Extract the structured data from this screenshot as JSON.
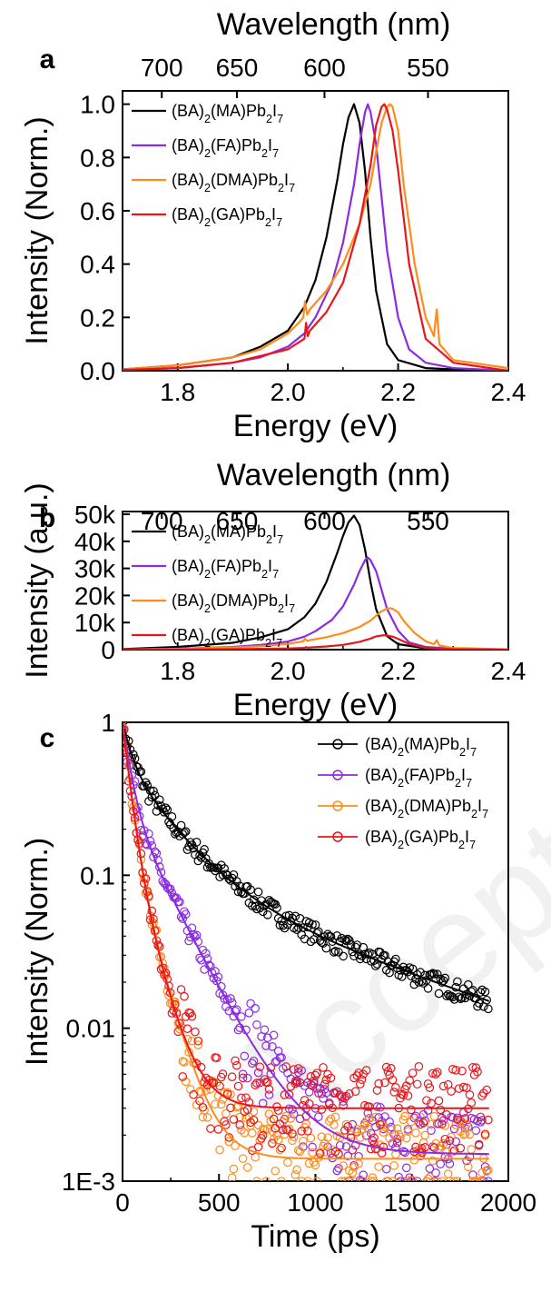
{
  "watermark": "Accepted Manuscript",
  "colors": {
    "MA": "#000000",
    "FA": "#8B2BE2",
    "DMA": "#FF8C1A",
    "GA": "#E8161B"
  },
  "chart_data": [
    {
      "panel": "a",
      "type": "line",
      "top_axis_label": "Wavelength (nm)",
      "top_ticks": [
        700,
        650,
        600,
        550
      ],
      "xlabel": "Energy (eV)",
      "ylabel": "Intensity (Norm.)",
      "xlim": [
        1.7,
        2.4
      ],
      "ylim": [
        0,
        1.05
      ],
      "xticks": [
        1.8,
        2.0,
        2.2,
        2.4
      ],
      "xtick_labels": [
        "1.8",
        "2.0",
        "2.2",
        "2.4"
      ],
      "yticks": [
        0,
        0.2,
        0.4,
        0.6,
        0.8,
        1.0
      ],
      "ytick_labels": [
        "0.0",
        "0.2",
        "0.4",
        "0.6",
        "0.8",
        "1.0"
      ],
      "legend": "top-left",
      "series": [
        {
          "name": "(BA)2(MA)Pb2I7",
          "label_main": "(BA)",
          "sub1": "2",
          "mid": "(MA)Pb",
          "sub2": "2",
          "end": "I",
          "sub3": "7",
          "color_key": "MA",
          "x": [
            1.7,
            1.8,
            1.9,
            1.95,
            2.0,
            2.03,
            2.05,
            2.07,
            2.09,
            2.1,
            2.11,
            2.12,
            2.13,
            2.14,
            2.15,
            2.16,
            2.18,
            2.2,
            2.25,
            2.3,
            2.4
          ],
          "y": [
            0.005,
            0.02,
            0.05,
            0.09,
            0.15,
            0.24,
            0.34,
            0.5,
            0.72,
            0.85,
            0.95,
            1.0,
            0.93,
            0.75,
            0.5,
            0.3,
            0.1,
            0.04,
            0.01,
            0.005,
            0.0
          ]
        },
        {
          "name": "(BA)2(FA)Pb2I7",
          "label_main": "(BA)",
          "sub1": "2",
          "mid": "(FA)Pb",
          "sub2": "2",
          "end": "I",
          "sub3": "7",
          "color_key": "FA",
          "x": [
            1.7,
            1.8,
            1.9,
            1.95,
            2.0,
            2.03,
            2.05,
            2.08,
            2.1,
            2.12,
            2.13,
            2.14,
            2.145,
            2.15,
            2.16,
            2.17,
            2.18,
            2.2,
            2.22,
            2.25,
            2.3,
            2.4
          ],
          "y": [
            0.003,
            0.01,
            0.03,
            0.05,
            0.09,
            0.14,
            0.2,
            0.33,
            0.48,
            0.7,
            0.85,
            0.97,
            1.0,
            0.97,
            0.85,
            0.65,
            0.45,
            0.2,
            0.08,
            0.03,
            0.01,
            0.0
          ]
        },
        {
          "name": "(BA)2(DMA)Pb2I7",
          "label_main": "(BA)",
          "sub1": "2",
          "mid": "(DMA)Pb",
          "sub2": "2",
          "end": "I",
          "sub3": "7",
          "color_key": "DMA",
          "x": [
            1.7,
            1.8,
            1.9,
            1.95,
            2.0,
            2.02,
            2.028,
            2.031,
            2.035,
            2.04,
            2.07,
            2.1,
            2.13,
            2.15,
            2.16,
            2.17,
            2.18,
            2.185,
            2.19,
            2.2,
            2.21,
            2.23,
            2.25,
            2.265,
            2.27,
            2.275,
            2.3,
            2.4
          ],
          "y": [
            0.005,
            0.02,
            0.05,
            0.08,
            0.14,
            0.18,
            0.2,
            0.26,
            0.21,
            0.23,
            0.3,
            0.4,
            0.55,
            0.7,
            0.82,
            0.93,
            0.99,
            1.0,
            0.99,
            0.9,
            0.7,
            0.4,
            0.2,
            0.13,
            0.23,
            0.1,
            0.04,
            0.01
          ]
        },
        {
          "name": "(BA)2(GA)Pb2I7",
          "label_main": "(BA)",
          "sub1": "2",
          "mid": "(GA)Pb",
          "sub2": "2",
          "end": "I",
          "sub3": "7",
          "color_key": "GA",
          "x": [
            1.7,
            1.8,
            1.9,
            2.0,
            2.03,
            2.033,
            2.036,
            2.04,
            2.07,
            2.1,
            2.13,
            2.15,
            2.16,
            2.17,
            2.175,
            2.18,
            2.19,
            2.2,
            2.22,
            2.25,
            2.3,
            2.4
          ],
          "y": [
            0.003,
            0.01,
            0.03,
            0.08,
            0.12,
            0.18,
            0.13,
            0.15,
            0.22,
            0.33,
            0.55,
            0.77,
            0.92,
            0.99,
            1.0,
            0.98,
            0.9,
            0.75,
            0.4,
            0.12,
            0.03,
            0.0
          ]
        }
      ]
    },
    {
      "panel": "b",
      "type": "line",
      "top_axis_label": "Wavelength (nm)",
      "top_ticks": [
        700,
        650,
        600,
        550
      ],
      "xlabel": "Energy (eV)",
      "ylabel": "Intensity (a.u.)",
      "xlim": [
        1.7,
        2.4
      ],
      "ylim": [
        0,
        51000
      ],
      "xticks": [
        1.8,
        2.0,
        2.2,
        2.4
      ],
      "xtick_labels": [
        "1.8",
        "2.0",
        "2.2",
        "2.4"
      ],
      "yticks": [
        0,
        10000,
        20000,
        30000,
        40000,
        50000
      ],
      "ytick_labels": [
        "0",
        "10k",
        "20k",
        "30k",
        "40k",
        "50k"
      ],
      "legend": "top-left",
      "series": [
        {
          "name": "(BA)2(MA)Pb2I7",
          "label_main": "(BA)",
          "sub1": "2",
          "mid": "(MA)Pb",
          "sub2": "2",
          "end": "I",
          "sub3": "7",
          "color_key": "MA",
          "x": [
            1.7,
            1.8,
            1.9,
            1.95,
            2.0,
            2.03,
            2.05,
            2.07,
            2.09,
            2.1,
            2.11,
            2.12,
            2.13,
            2.14,
            2.15,
            2.16,
            2.18,
            2.2,
            2.25,
            2.3,
            2.4
          ],
          "y": [
            250,
            1000,
            2500,
            4500,
            7500,
            12000,
            17000,
            25000,
            36000,
            42000,
            47000,
            49500,
            46000,
            37000,
            25000,
            15000,
            5000,
            2000,
            500,
            200,
            0
          ]
        },
        {
          "name": "(BA)2(FA)Pb2I7",
          "label_main": "(BA)",
          "sub1": "2",
          "mid": "(FA)Pb",
          "sub2": "2",
          "end": "I",
          "sub3": "7",
          "color_key": "FA",
          "x": [
            1.7,
            1.8,
            1.9,
            1.95,
            2.0,
            2.03,
            2.05,
            2.08,
            2.1,
            2.12,
            2.13,
            2.14,
            2.145,
            2.15,
            2.16,
            2.17,
            2.18,
            2.2,
            2.22,
            2.25,
            2.3,
            2.4
          ],
          "y": [
            100,
            340,
            1000,
            1700,
            3000,
            4800,
            6800,
            11000,
            16000,
            24000,
            29000,
            33000,
            34000,
            33000,
            29000,
            22000,
            15000,
            7000,
            2700,
            1000,
            300,
            0
          ]
        },
        {
          "name": "(BA)2(DMA)Pb2I7",
          "label_main": "(BA)",
          "sub1": "2",
          "mid": "(DMA)Pb",
          "sub2": "2",
          "end": "I",
          "sub3": "7",
          "color_key": "DMA",
          "x": [
            1.7,
            1.8,
            1.9,
            1.95,
            2.0,
            2.02,
            2.028,
            2.031,
            2.035,
            2.04,
            2.07,
            2.1,
            2.13,
            2.15,
            2.16,
            2.17,
            2.18,
            2.185,
            2.19,
            2.2,
            2.21,
            2.23,
            2.25,
            2.265,
            2.27,
            2.275,
            2.3,
            2.4
          ],
          "y": [
            80,
            300,
            800,
            1200,
            2100,
            2800,
            3100,
            4000,
            3200,
            3500,
            4600,
            6100,
            8400,
            10700,
            12500,
            14200,
            15100,
            15300,
            15100,
            13800,
            10700,
            6100,
            3100,
            2000,
            3500,
            1500,
            600,
            150
          ]
        },
        {
          "name": "(BA)2(GA)Pb2I7",
          "label_main": "(BA)",
          "sub1": "2",
          "mid": "(GA)Pb",
          "sub2": "2",
          "end": "I",
          "sub3": "7",
          "color_key": "GA",
          "x": [
            1.7,
            1.8,
            1.9,
            2.0,
            2.03,
            2.033,
            2.036,
            2.04,
            2.07,
            2.1,
            2.13,
            2.15,
            2.16,
            2.17,
            2.175,
            2.18,
            2.19,
            2.2,
            2.22,
            2.25,
            2.3,
            2.4
          ],
          "y": [
            20,
            50,
            160,
            420,
            640,
            950,
            690,
            800,
            1170,
            1750,
            2900,
            4100,
            4900,
            5250,
            5300,
            5200,
            4800,
            4000,
            2100,
            640,
            160,
            0
          ]
        }
      ]
    },
    {
      "panel": "c",
      "type": "scatter",
      "xlabel": "Time (ps)",
      "ylabel": "Intensity (Norm.)",
      "xlim": [
        0,
        2000
      ],
      "ylim": [
        0.001,
        1
      ],
      "yscale": "log",
      "xticks": [
        0,
        500,
        1000,
        1500,
        2000
      ],
      "xtick_labels": [
        "0",
        "500",
        "1000",
        "1500",
        "2000"
      ],
      "yticks": [
        0.001,
        0.01,
        0.1,
        1
      ],
      "ytick_labels": [
        "1E-3",
        "0.01",
        "0.1",
        "1"
      ],
      "legend": "top-right",
      "series": [
        {
          "name": "(BA)2(MA)Pb2I7",
          "label_main": "(BA)",
          "sub1": "2",
          "mid": "(MA)Pb",
          "sub2": "2",
          "end": "I",
          "sub3": "7",
          "color_key": "MA",
          "fit": {
            "a1": 0.45,
            "t1": 45,
            "a2": 0.45,
            "t2": 220,
            "a3": 0.1,
            "t3": 1000,
            "y0": 0.0
          }
        },
        {
          "name": "(BA)2(FA)Pb2I7",
          "label_main": "(BA)",
          "sub1": "2",
          "mid": "(FA)Pb",
          "sub2": "2",
          "end": "I",
          "sub3": "7",
          "color_key": "FA",
          "fit": {
            "a1": 0.7,
            "t1": 40,
            "a2": 0.3,
            "t2": 175,
            "a3": 0.0,
            "t3": 1,
            "y0": 0.0015
          }
        },
        {
          "name": "(BA)2(DMA)Pb2I7",
          "label_main": "(BA)",
          "sub1": "2",
          "mid": "(DMA)Pb",
          "sub2": "2",
          "end": "I",
          "sub3": "7",
          "color_key": "DMA",
          "fit": {
            "a1": 0.8,
            "t1": 35,
            "a2": 0.2,
            "t2": 95,
            "a3": 0.0,
            "t3": 1,
            "y0": 0.0014
          }
        },
        {
          "name": "(BA)2(GA)Pb2I7",
          "label_main": "(BA)",
          "sub1": "2",
          "mid": "(GA)Pb",
          "sub2": "2",
          "end": "I",
          "sub3": "7",
          "color_key": "GA",
          "fit": {
            "a1": 0.8,
            "t1": 35,
            "a2": 0.2,
            "t2": 90,
            "a3": 0.0,
            "t3": 1,
            "y0": 0.003
          }
        }
      ]
    }
  ]
}
